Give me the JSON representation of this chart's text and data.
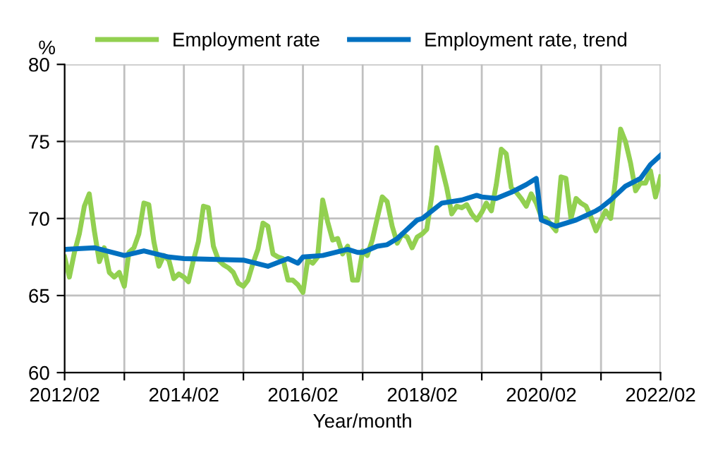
{
  "chart_data": {
    "type": "line",
    "ylabel": "%",
    "xlabel": "Year/month",
    "xlim": [
      "2012-02",
      "2022-02"
    ],
    "xticks": [
      {
        "value": "2012-02",
        "label": "2012/02"
      },
      {
        "value": "2013-02",
        "label": null
      },
      {
        "value": "2014-02",
        "label": "2014/02"
      },
      {
        "value": "2015-02",
        "label": null
      },
      {
        "value": "2016-02",
        "label": "2016/02"
      },
      {
        "value": "2017-02",
        "label": null
      },
      {
        "value": "2018-02",
        "label": "2018/02"
      },
      {
        "value": "2019-02",
        "label": null
      },
      {
        "value": "2020-02",
        "label": "2020/02"
      },
      {
        "value": "2021-02",
        "label": null
      },
      {
        "value": "2022-02",
        "label": "2022/02"
      }
    ],
    "ylim": [
      60,
      80
    ],
    "yticks": [
      60,
      65,
      70,
      75,
      80
    ],
    "grid": true,
    "legend": "top",
    "marker": "none",
    "line_style": "solid",
    "series": [
      {
        "name": "Employment rate",
        "color": "#92d050",
        "x": [
          "2012-02",
          "2012-03",
          "2012-04",
          "2012-05",
          "2012-06",
          "2012-07",
          "2012-08",
          "2012-09",
          "2012-10",
          "2012-11",
          "2012-12",
          "2013-01",
          "2013-02",
          "2013-03",
          "2013-04",
          "2013-05",
          "2013-06",
          "2013-07",
          "2013-08",
          "2013-09",
          "2013-10",
          "2013-11",
          "2013-12",
          "2014-01",
          "2014-02",
          "2014-03",
          "2014-04",
          "2014-05",
          "2014-06",
          "2014-07",
          "2014-08",
          "2014-09",
          "2014-10",
          "2014-11",
          "2014-12",
          "2015-01",
          "2015-02",
          "2015-03",
          "2015-04",
          "2015-05",
          "2015-06",
          "2015-07",
          "2015-08",
          "2015-09",
          "2015-10",
          "2015-11",
          "2015-12",
          "2016-01",
          "2016-02",
          "2016-03",
          "2016-04",
          "2016-05",
          "2016-06",
          "2016-07",
          "2016-08",
          "2016-09",
          "2016-10",
          "2016-11",
          "2016-12",
          "2017-01",
          "2017-02",
          "2017-03",
          "2017-04",
          "2017-05",
          "2017-06",
          "2017-07",
          "2017-08",
          "2017-09",
          "2017-10",
          "2017-11",
          "2017-12",
          "2018-01",
          "2018-02",
          "2018-03",
          "2018-04",
          "2018-05",
          "2018-06",
          "2018-07",
          "2018-08",
          "2018-09",
          "2018-10",
          "2018-11",
          "2018-12",
          "2019-01",
          "2019-02",
          "2019-03",
          "2019-04",
          "2019-05",
          "2019-06",
          "2019-07",
          "2019-08",
          "2019-09",
          "2019-10",
          "2019-11",
          "2019-12",
          "2020-01",
          "2020-02",
          "2020-03",
          "2020-04",
          "2020-05",
          "2020-06",
          "2020-07",
          "2020-08",
          "2020-09",
          "2020-10",
          "2020-11",
          "2020-12",
          "2021-01",
          "2021-02",
          "2021-03",
          "2021-04",
          "2021-05",
          "2021-06",
          "2021-07",
          "2021-08",
          "2021-09",
          "2021-10",
          "2021-11",
          "2021-12",
          "2022-01",
          "2022-02"
        ],
        "values": [
          67.5,
          66.2,
          67.8,
          69.0,
          70.8,
          71.6,
          69.2,
          67.2,
          68.1,
          66.5,
          66.2,
          66.5,
          65.6,
          67.8,
          68.1,
          69.0,
          71.0,
          70.9,
          68.5,
          66.9,
          67.6,
          67.3,
          66.1,
          66.4,
          66.2,
          65.9,
          67.3,
          68.5,
          70.8,
          70.7,
          68.2,
          67.3,
          67.0,
          66.8,
          66.5,
          65.8,
          65.6,
          66.0,
          67.1,
          68.0,
          69.7,
          69.5,
          67.7,
          67.5,
          67.4,
          66.0,
          66.0,
          65.7,
          65.2,
          67.3,
          67.1,
          67.5,
          71.2,
          69.8,
          68.6,
          68.7,
          67.7,
          68.2,
          66.0,
          66.0,
          67.9,
          67.6,
          68.6,
          70.0,
          71.4,
          71.1,
          69.5,
          68.4,
          69.0,
          68.8,
          68.1,
          68.8,
          69.0,
          69.3,
          71.5,
          74.6,
          73.3,
          72.0,
          70.3,
          70.8,
          70.7,
          70.9,
          70.3,
          69.9,
          70.4,
          71.0,
          70.5,
          72.2,
          74.5,
          74.2,
          72.0,
          71.7,
          71.3,
          70.8,
          71.6,
          71.0,
          70.1,
          70.0,
          69.6,
          69.2,
          72.7,
          72.6,
          70.0,
          71.3,
          71.0,
          70.8,
          70.1,
          69.2,
          69.9,
          70.5,
          70.0,
          72.5,
          75.8,
          75.0,
          73.6,
          71.8,
          72.3,
          72.3,
          73.1,
          71.4,
          72.7
        ]
      },
      {
        "name": "Employment rate, trend",
        "color": "#0070c0",
        "x": [
          "2012-02",
          "2012-08",
          "2013-02",
          "2013-06",
          "2013-11",
          "2014-02",
          "2015-02",
          "2015-07",
          "2015-11",
          "2016-01",
          "2016-02",
          "2016-06",
          "2016-11",
          "2017-01",
          "2017-02",
          "2017-05",
          "2017-07",
          "2017-09",
          "2017-11",
          "2018-01",
          "2018-02",
          "2018-06",
          "2018-10",
          "2019-01",
          "2019-02",
          "2019-05",
          "2019-08",
          "2019-11",
          "2020-01",
          "2020-02",
          "2020-05",
          "2020-09",
          "2021-01",
          "2021-02",
          "2021-04",
          "2021-07",
          "2021-10",
          "2021-12",
          "2022-02"
        ],
        "values": [
          68.0,
          68.1,
          67.6,
          67.9,
          67.5,
          67.4,
          67.3,
          66.9,
          67.4,
          67.1,
          67.5,
          67.6,
          68.0,
          67.8,
          67.8,
          68.2,
          68.3,
          68.7,
          69.3,
          69.9,
          70.0,
          71.0,
          71.2,
          71.5,
          71.4,
          71.3,
          71.7,
          72.2,
          72.6,
          69.9,
          69.5,
          69.9,
          70.5,
          70.7,
          71.2,
          72.1,
          72.6,
          73.5,
          74.1
        ]
      }
    ]
  }
}
